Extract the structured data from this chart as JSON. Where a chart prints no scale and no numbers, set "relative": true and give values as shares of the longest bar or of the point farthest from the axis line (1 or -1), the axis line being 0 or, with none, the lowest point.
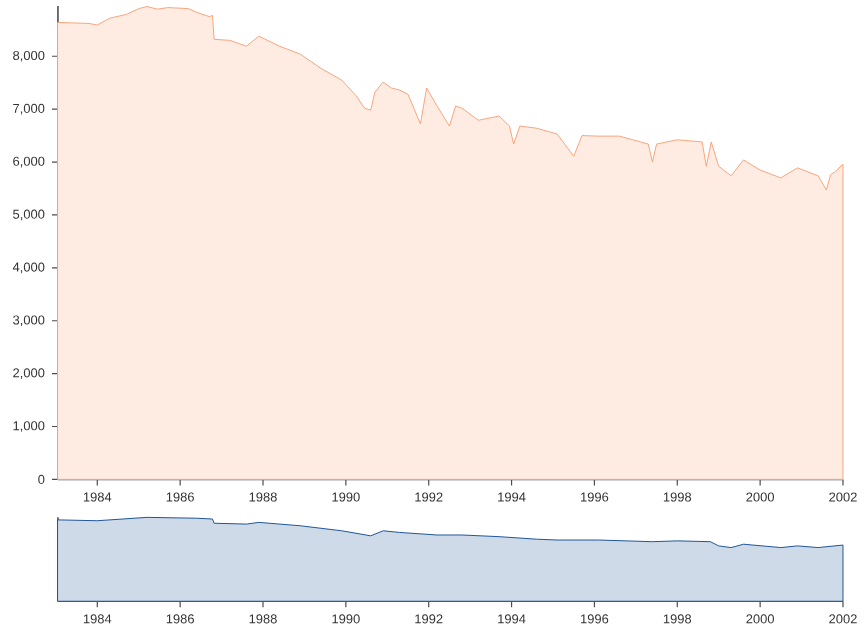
{
  "chart_data": [
    {
      "type": "area",
      "color": "#f9a47c",
      "xlim": [
        1983.05,
        2002.0
      ],
      "ylim": [
        0,
        8950
      ],
      "xticks": [
        1984,
        1986,
        1988,
        1990,
        1992,
        1994,
        1996,
        1998,
        2000,
        2002
      ],
      "yticks": [
        0,
        {
          "value": 1000,
          "label": "1,000"
        },
        {
          "value": 2000,
          "label": "2,000"
        },
        {
          "value": 3000,
          "label": "3,000"
        },
        {
          "value": 4000,
          "label": "4,000"
        },
        {
          "value": 5000,
          "label": "5,000"
        },
        {
          "value": 6000,
          "label": "6,000"
        },
        {
          "value": 7000,
          "label": "7,000"
        },
        {
          "value": 8000,
          "label": "8,000"
        }
      ],
      "x": [
        1983.05,
        1983.8,
        1984.0,
        1984.3,
        1984.7,
        1985.0,
        1985.2,
        1985.45,
        1985.7,
        1986.2,
        1986.4,
        1986.7,
        1986.78,
        1986.82,
        1987.2,
        1987.6,
        1987.9,
        1988.4,
        1988.9,
        1989.4,
        1989.9,
        1990.25,
        1990.45,
        1990.6,
        1990.7,
        1990.9,
        1991.1,
        1991.3,
        1991.5,
        1991.8,
        1991.95,
        1992.2,
        1992.5,
        1992.65,
        1992.8,
        1993.2,
        1993.7,
        1993.95,
        1994.05,
        1994.2,
        1994.6,
        1995.1,
        1995.5,
        1995.7,
        1996.1,
        1996.6,
        1997.3,
        1997.4,
        1997.5,
        1998.0,
        1998.6,
        1998.7,
        1998.82,
        1999.0,
        1999.3,
        1999.6,
        2000.0,
        2000.5,
        2000.9,
        2001.4,
        2001.6,
        2001.7,
        2001.8,
        2002.0
      ],
      "values": [
        8640,
        8620,
        8590,
        8720,
        8790,
        8900,
        8940,
        8890,
        8920,
        8900,
        8830,
        8750,
        8770,
        8320,
        8300,
        8190,
        8380,
        8190,
        8040,
        7770,
        7550,
        7250,
        7020,
        6980,
        7320,
        7510,
        7400,
        7360,
        7280,
        6720,
        7400,
        7060,
        6680,
        7060,
        7020,
        6790,
        6870,
        6680,
        6340,
        6680,
        6640,
        6530,
        6110,
        6500,
        6490,
        6490,
        6340,
        6000,
        6340,
        6420,
        6380,
        5920,
        6380,
        5920,
        5740,
        6040,
        5850,
        5700,
        5890,
        5740,
        5470,
        5760,
        5810,
        5960
      ]
    },
    {
      "type": "area",
      "color": "#1f5597",
      "relative": true,
      "xlim": [
        1983.05,
        2002.0
      ],
      "tick_labels": "x",
      "xticks": [
        1984,
        1986,
        1988,
        1990,
        1992,
        1994,
        1996,
        1998,
        2000,
        2002
      ],
      "x": [
        1983.05,
        1984.0,
        1985.2,
        1986.4,
        1986.78,
        1986.82,
        1987.6,
        1987.9,
        1988.9,
        1989.9,
        1990.6,
        1990.9,
        1991.3,
        1992.2,
        1992.8,
        1993.7,
        1994.6,
        1995.1,
        1996.1,
        1997.4,
        1998.0,
        1998.8,
        1999.0,
        1999.3,
        1999.6,
        2000.5,
        2000.9,
        2001.4,
        2002.0
      ],
      "values": [
        0.97,
        0.96,
        1.0,
        0.99,
        0.98,
        0.93,
        0.92,
        0.94,
        0.9,
        0.84,
        0.78,
        0.84,
        0.82,
        0.79,
        0.79,
        0.77,
        0.74,
        0.73,
        0.73,
        0.71,
        0.72,
        0.71,
        0.66,
        0.64,
        0.68,
        0.64,
        0.66,
        0.64,
        0.67
      ]
    }
  ]
}
